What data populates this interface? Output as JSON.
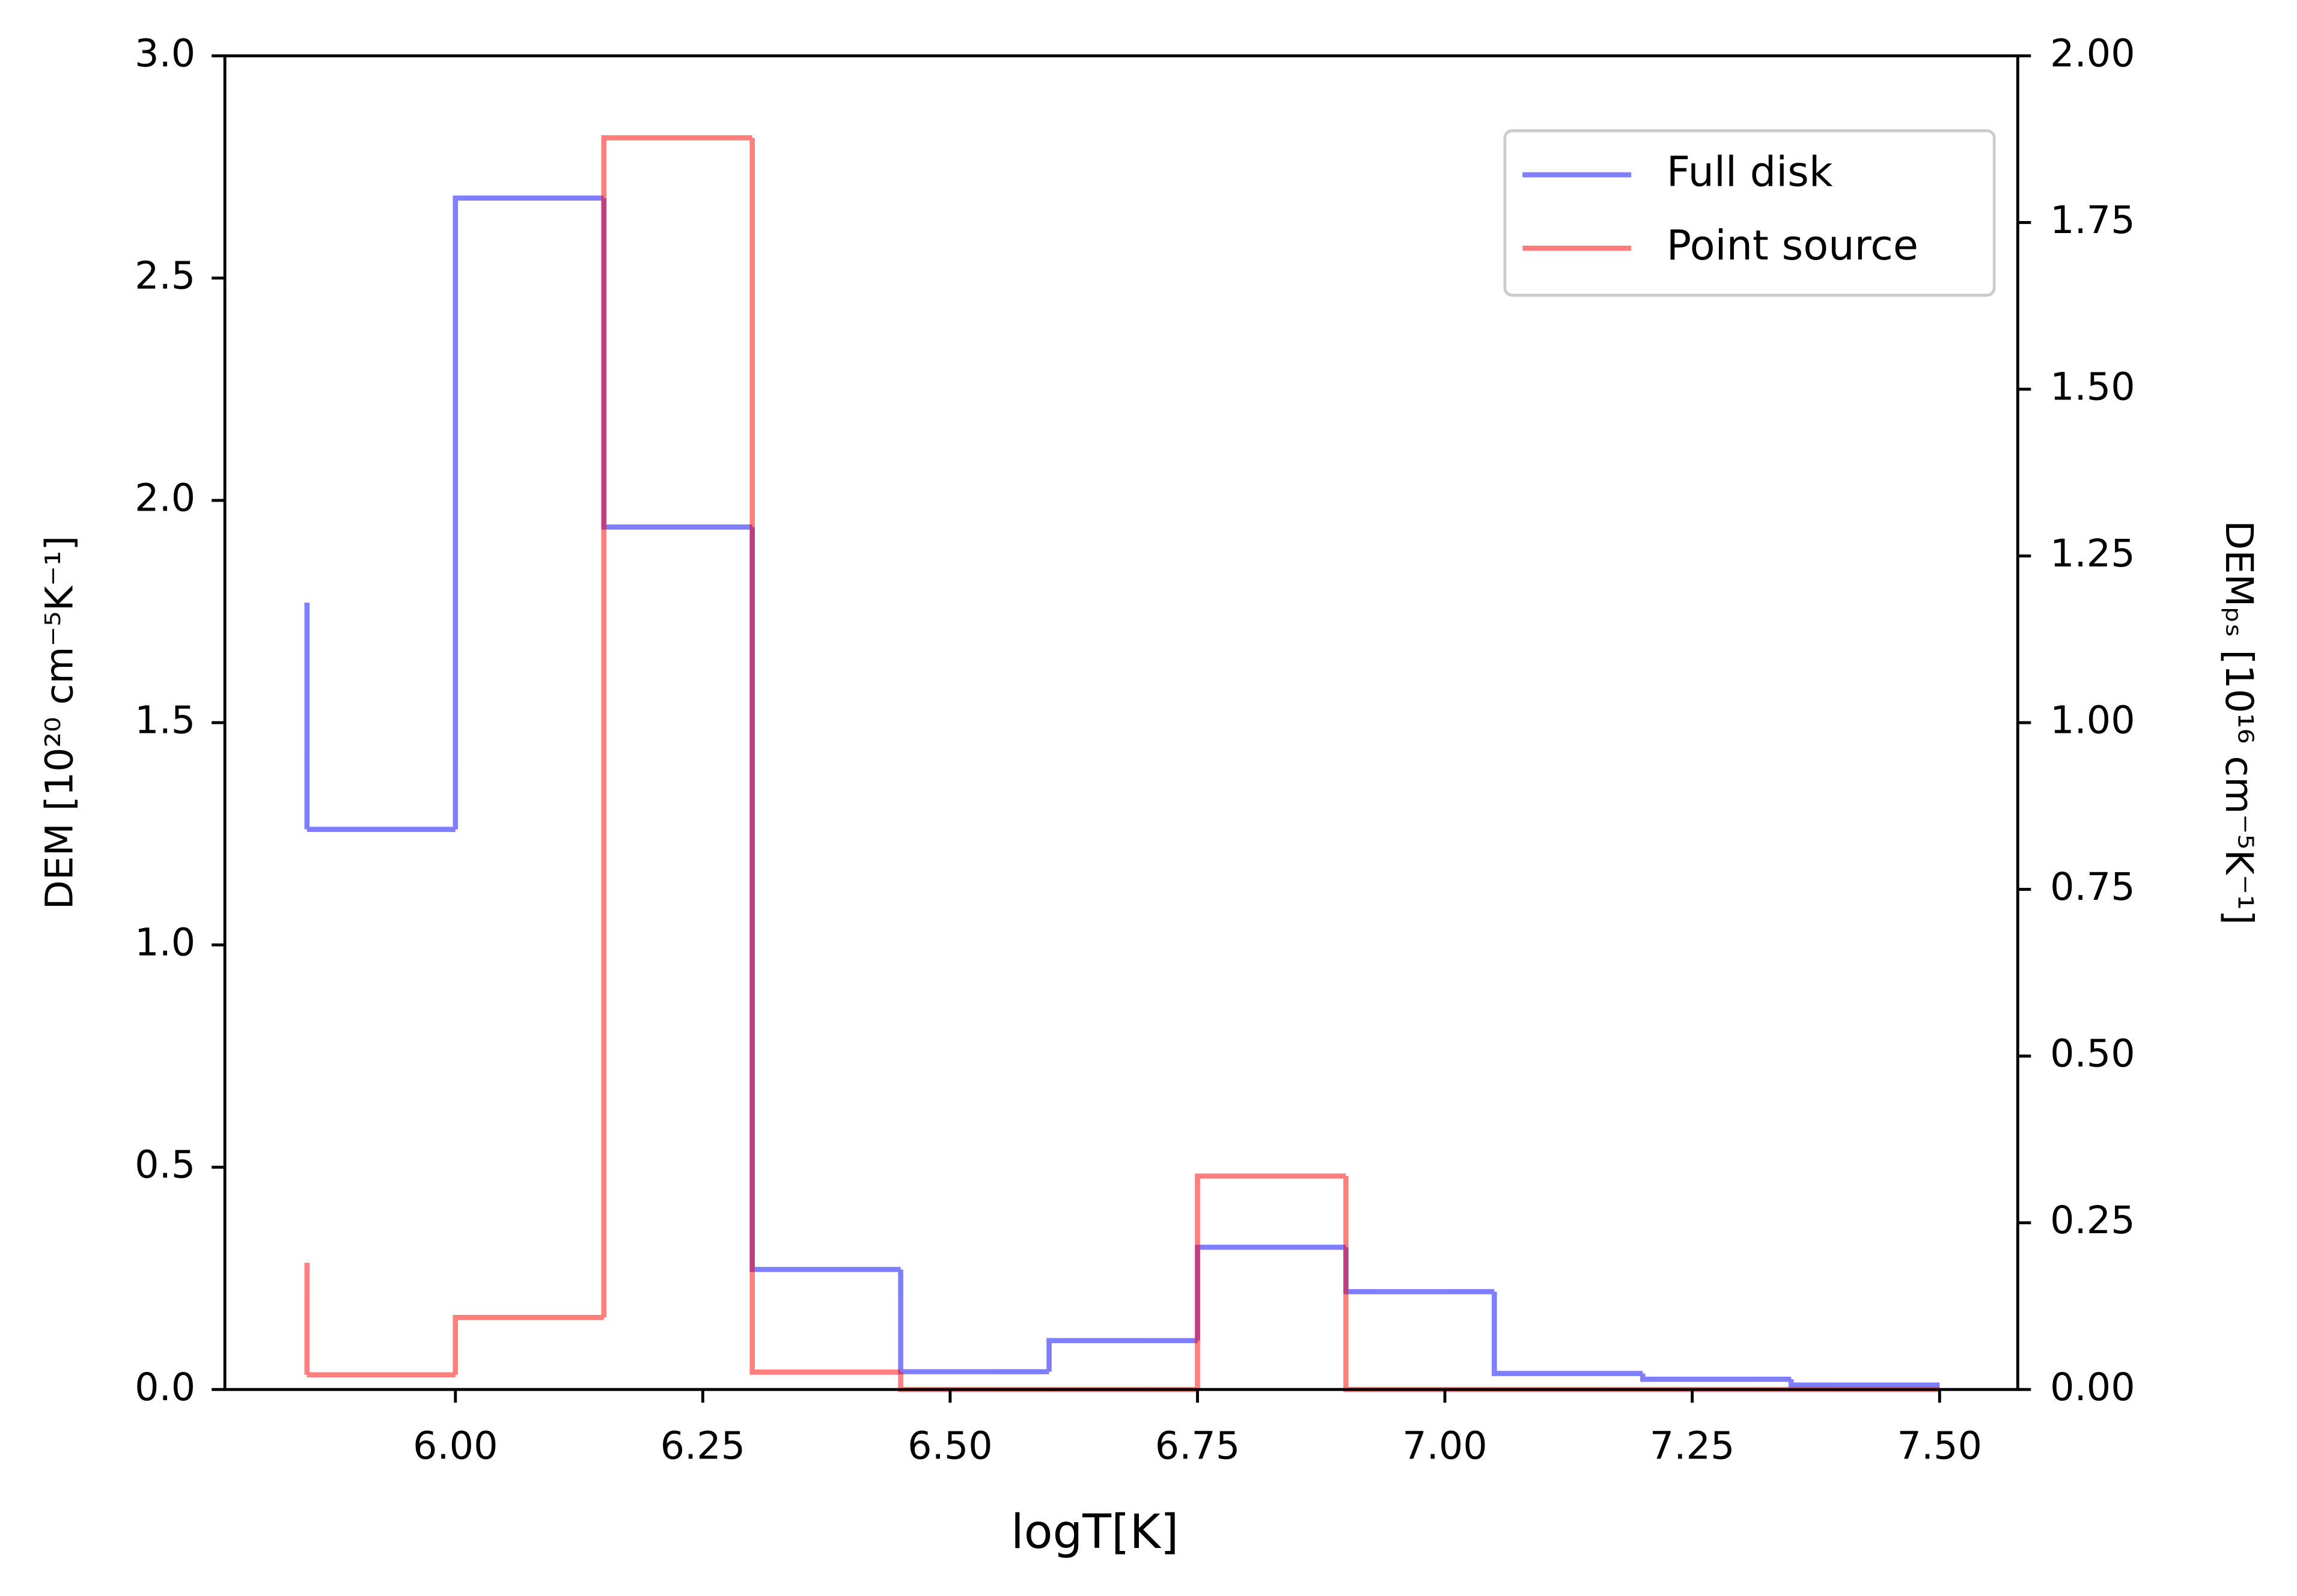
{
  "chart_data": {
    "type": "step",
    "step_where": "pre",
    "xlabel": "logT[K]",
    "ylabel": "DEM [10²⁰ cm⁻⁵K⁻¹]",
    "y2label": "DEMₚₛ [10¹⁶ cm⁻⁵K⁻¹]",
    "x": [
      5.85,
      6.0,
      6.15,
      6.3,
      6.45,
      6.6,
      6.75,
      6.9,
      7.05,
      7.2,
      7.35,
      7.5
    ],
    "series": [
      {
        "name": "Full disk",
        "color": "#0000ff",
        "axis": "y",
        "values": [
          1.77,
          1.26,
          2.68,
          1.94,
          0.27,
          0.04,
          0.11,
          0.32,
          0.22,
          0.036,
          0.023,
          0.01
        ]
      },
      {
        "name": "Point source",
        "color": "#ff0000",
        "axis": "y2",
        "values": [
          0.19,
          0.022,
          0.108,
          1.877,
          0.026,
          0,
          0,
          0.32,
          0,
          0,
          0,
          0
        ]
      }
    ],
    "alpha": 0.5,
    "xlim": [
      5.767,
      7.579
    ],
    "xticks": [
      {
        "value": 6.0,
        "label": "6.00"
      },
      6.25,
      {
        "value": 6.5,
        "label": "6.50"
      },
      6.75,
      {
        "value": 7.0,
        "label": "7.00"
      },
      7.25,
      {
        "value": 7.5,
        "label": "7.50"
      }
    ],
    "ylim": [
      0,
      3
    ],
    "yticks": [
      {
        "value": 0,
        "label": "0.0"
      },
      0.5,
      {
        "value": 1,
        "label": "1.0"
      },
      1.5,
      {
        "value": 2,
        "label": "2.0"
      },
      2.5,
      {
        "value": 3,
        "label": "3.0"
      }
    ],
    "y2lim": [
      0,
      2
    ],
    "y2ticks": [
      {
        "value": 0,
        "label": "0.00"
      },
      0.25,
      {
        "value": 0.5,
        "label": "0.50"
      },
      0.75,
      {
        "value": 1,
        "label": "1.00"
      },
      1.25,
      {
        "value": 1.5,
        "label": "1.50"
      },
      1.75,
      {
        "value": 2,
        "label": "2.00"
      }
    ],
    "grid": false,
    "legend": "upper right"
  }
}
